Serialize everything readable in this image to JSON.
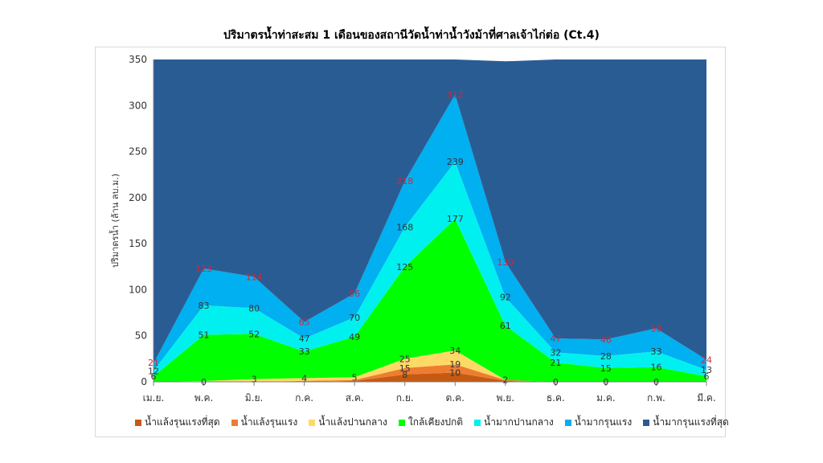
{
  "chart_data": {
    "type": "area",
    "stacked": true,
    "title": "ปริมาตรน้ำท่าสะสม 1 เดือนของสถานีวัดน้ำท่าน้ำวังม้าที่ศาลเจ้าไก่ต่อ (Ct.4)",
    "ylabel": "ปริมาตรน้ำ (ล้าน ลบ.ม.)",
    "xlabel": "",
    "ylim": [
      0,
      350
    ],
    "yticks": [
      "0",
      "50",
      "100",
      "150",
      "200",
      "250",
      "300",
      "350"
    ],
    "categories": [
      "เม.ย.",
      "พ.ค.",
      "มิ.ย.",
      "ก.ค.",
      "ส.ค.",
      "ก.ย.",
      "ต.ค.",
      "พ.ย.",
      "ธ.ค.",
      "ม.ค.",
      "ก.พ.",
      "มี.ค."
    ],
    "legend_position": "bottom",
    "series": [
      {
        "name": "น้ำแล้งรุนแรงที่สุด",
        "color": "#c55a11",
        "values": [
          0,
          0,
          0,
          0,
          1,
          8,
          10,
          1,
          0,
          0,
          0,
          0
        ]
      },
      {
        "name": "น้ำแล้งรุนแรง",
        "color": "#ed7d31",
        "values": [
          0,
          0,
          0,
          1,
          1,
          7,
          9,
          1,
          0,
          0,
          0,
          0
        ]
      },
      {
        "name": "น้ำแล้งปานกลาง",
        "color": "#ffd966",
        "values": [
          0,
          1,
          3,
          3,
          3,
          10,
          15,
          0,
          0,
          0,
          0,
          0
        ]
      },
      {
        "name": "ใกล้เคียงปกติ",
        "color": "#00ff00",
        "values": [
          6,
          50,
          49,
          29,
          44,
          100,
          143,
          59,
          21,
          15,
          16,
          6
        ]
      },
      {
        "name": "น้ำมากปานกลาง",
        "color": "#00f0f0",
        "values": [
          6,
          32,
          28,
          14,
          21,
          43,
          62,
          31,
          11,
          13,
          17,
          7
        ]
      },
      {
        "name": "น้ำมากรุนแรง",
        "color": "#00b0f0",
        "values": [
          8,
          40,
          34,
          18,
          26,
          50,
          73,
          38,
          15,
          18,
          25,
          11
        ]
      },
      {
        "name": "น้ำมากรุนแรงที่สุด",
        "color": "#2a5c94",
        "values": [
          330,
          227,
          236,
          285,
          254,
          132,
          38,
          218,
          303,
          304,
          292,
          326
        ]
      }
    ],
    "data_labels": [
      {
        "category": 0,
        "values": [
          "6",
          "12"
        ],
        "top": "21"
      },
      {
        "category": 1,
        "values": [
          "0",
          "51",
          "83"
        ],
        "top": "123"
      },
      {
        "category": 2,
        "values": [
          "3",
          "52",
          "80"
        ],
        "top": "114"
      },
      {
        "category": 3,
        "values": [
          "4",
          "33",
          "47"
        ],
        "top": "65"
      },
      {
        "category": 4,
        "values": [
          "5",
          "49",
          "70"
        ],
        "top": "96"
      },
      {
        "category": 5,
        "values": [
          "8",
          "15",
          "25",
          "125",
          "168"
        ],
        "top": "218"
      },
      {
        "category": 6,
        "values": [
          "10",
          "19",
          "34",
          "177",
          "239"
        ],
        "top": "312"
      },
      {
        "category": 7,
        "values": [
          "2",
          "61",
          "92"
        ],
        "top": "130"
      },
      {
        "category": 8,
        "values": [
          "0",
          "21",
          "32"
        ],
        "top": "47"
      },
      {
        "category": 9,
        "values": [
          "0",
          "15",
          "28"
        ],
        "top": "46"
      },
      {
        "category": 10,
        "values": [
          "0",
          "16",
          "33"
        ],
        "top": "58"
      },
      {
        "category": 11,
        "values": [
          "6",
          "13"
        ],
        "top": "24"
      }
    ]
  }
}
